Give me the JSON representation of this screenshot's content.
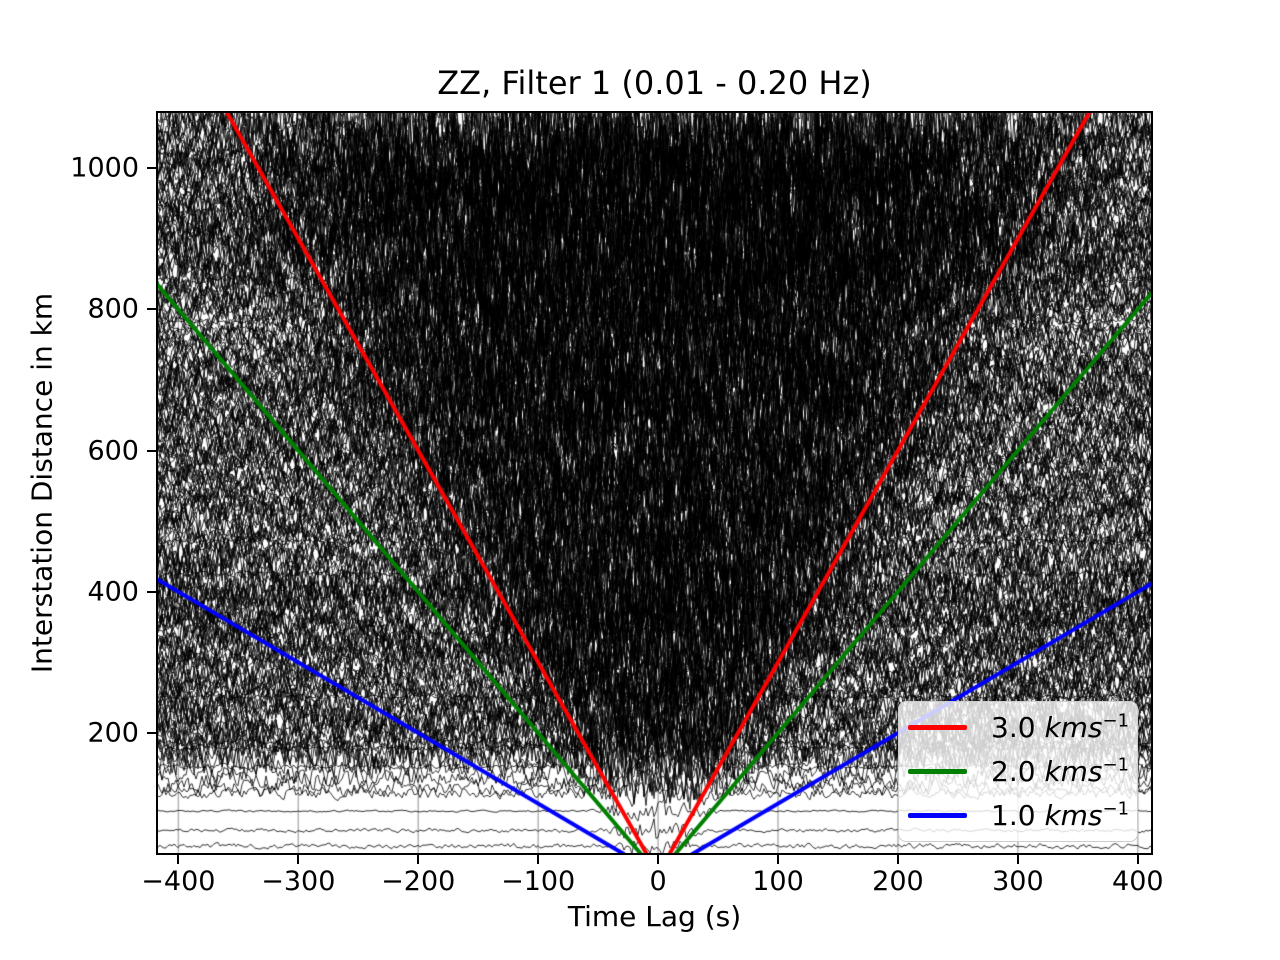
{
  "figure": {
    "title": "ZZ, Filter 1 (0.01 - 0.20 Hz)",
    "background_color": "#ffffff"
  },
  "chart_data": {
    "type": "line",
    "subtype": "ambient-noise-cross-correlation-record-section",
    "title": "ZZ, Filter 1 (0.01 - 0.20 Hz)",
    "component": "ZZ",
    "filter_label": "Filter 1",
    "filter_band_hz": [
      0.01,
      0.2
    ],
    "xlabel": "Time Lag (s)",
    "ylabel": "Interstation Distance in km",
    "xlim": [
      -417,
      411
    ],
    "ylim": [
      30,
      1078
    ],
    "x_ticks": [
      -400,
      -300,
      -200,
      -100,
      0,
      100,
      200,
      300,
      400
    ],
    "x_tick_labels": [
      "−400",
      "−300",
      "−200",
      "−100",
      "0",
      "100",
      "200",
      "300",
      "400"
    ],
    "y_ticks": [
      200,
      400,
      600,
      800,
      1000
    ],
    "y_tick_labels": [
      "200",
      "400",
      "600",
      "800",
      "1000"
    ],
    "grid": {
      "vertical": true,
      "horizontal": false,
      "color": "#b0b0b0"
    },
    "waveform_field": {
      "description": "Hundreds of black cross-correlation wiggle traces stacked by interstation distance (~30-1078 km); amplitudes overlap into a nearly solid black field with white speckle, a darker fan of high-amplitude arrivals spreading from zero lag bounded roughly by the 3 km/s moveout, coarser high-amplitude scribble above ~820 km, lighter horizontal streak bands at scattered distances, and only a few low-amplitude traces below ~120 km leaving white background near the bottom.",
      "trace_color": "#000000",
      "approx_trace_count": 280
    },
    "series": [
      {
        "name": "3.0 kms⁻¹",
        "kind": "velocity-moveout-line",
        "velocity_km_s": 3.0,
        "color": "#ff0000",
        "points_t_s_vs_d_km": [
          [
            -359.3,
            1078
          ],
          [
            0,
            0
          ],
          [
            359.3,
            1078
          ]
        ]
      },
      {
        "name": "2.0 kms⁻¹",
        "kind": "velocity-moveout-line",
        "velocity_km_s": 2.0,
        "color": "#008000",
        "points_t_s_vs_d_km": [
          [
            -539,
            1078
          ],
          [
            0,
            0
          ],
          [
            539,
            1078
          ]
        ]
      },
      {
        "name": "1.0 kms⁻¹",
        "kind": "velocity-moveout-line",
        "velocity_km_s": 1.0,
        "color": "#0000ff",
        "points_t_s_vs_d_km": [
          [
            -1078,
            1078
          ],
          [
            0,
            0
          ],
          [
            1078,
            1078
          ]
        ]
      }
    ],
    "legend": {
      "position": "lower right",
      "items": [
        {
          "value": "3.0 ",
          "unit": "kms",
          "exponent": "−1",
          "color": "#ff0000"
        },
        {
          "value": "2.0 ",
          "unit": "kms",
          "exponent": "−1",
          "color": "#008000"
        },
        {
          "value": "1.0 ",
          "unit": "kms",
          "exponent": "−1",
          "color": "#0000ff"
        }
      ]
    }
  }
}
